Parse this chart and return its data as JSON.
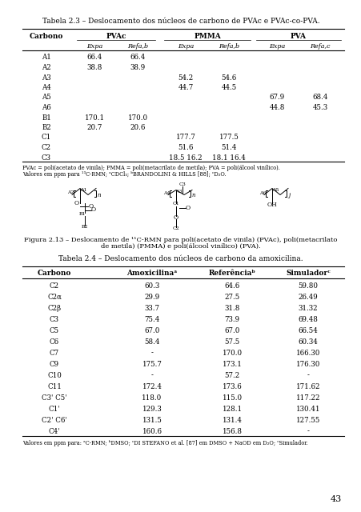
{
  "title1": "Tabela 2.3 – Deslocamento dos núcleos de carbono de PVAc e PVAc-co-PVA.",
  "table1_rows": [
    [
      "A1",
      "66.4",
      "66.4",
      "",
      "",
      "",
      ""
    ],
    [
      "A2",
      "38.8",
      "38.9",
      "",
      "",
      "",
      ""
    ],
    [
      "A3",
      "",
      "",
      "54.2",
      "54.6",
      "",
      ""
    ],
    [
      "A4",
      "",
      "",
      "44.7",
      "44.5",
      "",
      ""
    ],
    [
      "A5",
      "",
      "",
      "",
      "",
      "67.9",
      "68.4"
    ],
    [
      "A6",
      "",
      "",
      "",
      "",
      "44.8",
      "45.3"
    ],
    [
      "B1",
      "170.1",
      "170.0",
      "",
      "",
      "",
      ""
    ],
    [
      "B2",
      "20.7",
      "20.6",
      "",
      "",
      "",
      ""
    ],
    [
      "C1",
      "",
      "",
      "177.7",
      "177.5",
      "",
      ""
    ],
    [
      "C2",
      "",
      "",
      "51.6",
      "51.4",
      "",
      ""
    ],
    [
      "C3",
      "",
      "",
      "18.5 16.2",
      "18.1 16.4",
      "",
      ""
    ]
  ],
  "table1_footnote1": "PVAc = poli(acetato de vinila); PMMA = poli(metacrilato de metila); PVA = poli(álcool vinílico).",
  "table1_footnote2": "Valores em ppm para ¹³C-RMN; aCDCl3; bBRANDOLINI & HILLS [88]; cD2O.",
  "title2": "Tabela 2.4 – Deslocamento dos núcleos de carbono da amoxicilina.",
  "table2_header": [
    "Carbono",
    "Amoxicilina",
    "Referência",
    "Simulador"
  ],
  "table2_rows": [
    [
      "C2",
      "60.3",
      "64.6",
      "59.80"
    ],
    [
      "C2α",
      "29.9",
      "27.5",
      "26.49"
    ],
    [
      "C2β",
      "33.7",
      "31.8",
      "31.32"
    ],
    [
      "C3",
      "75.4",
      "73.9",
      "69.48"
    ],
    [
      "C5",
      "67.0",
      "67.0",
      "66.54"
    ],
    [
      "C6",
      "58.4",
      "57.5",
      "60.34"
    ],
    [
      "C7",
      "-",
      "170.0",
      "166.30"
    ],
    [
      "C9",
      "175.7",
      "173.1",
      "176.30"
    ],
    [
      "C10",
      "-",
      "57.2",
      "-"
    ],
    [
      "C11",
      "172.4",
      "173.6",
      "171.62"
    ],
    [
      "C3' C5'",
      "118.0",
      "115.0",
      "117.22"
    ],
    [
      "C1'",
      "129.3",
      "128.1",
      "130.41"
    ],
    [
      "C2' C6'",
      "131.5",
      "131.4",
      "127.55"
    ],
    [
      "C4'",
      "160.6",
      "156.8",
      "-"
    ]
  ],
  "table2_footnote": "Valores em ppm para: aC-RMN; bDMSO; cDI STEFANO et al. [87] em DMSO + NaOD em D2O; cSimulador.",
  "page_number": "43",
  "bg_color": "#ffffff"
}
